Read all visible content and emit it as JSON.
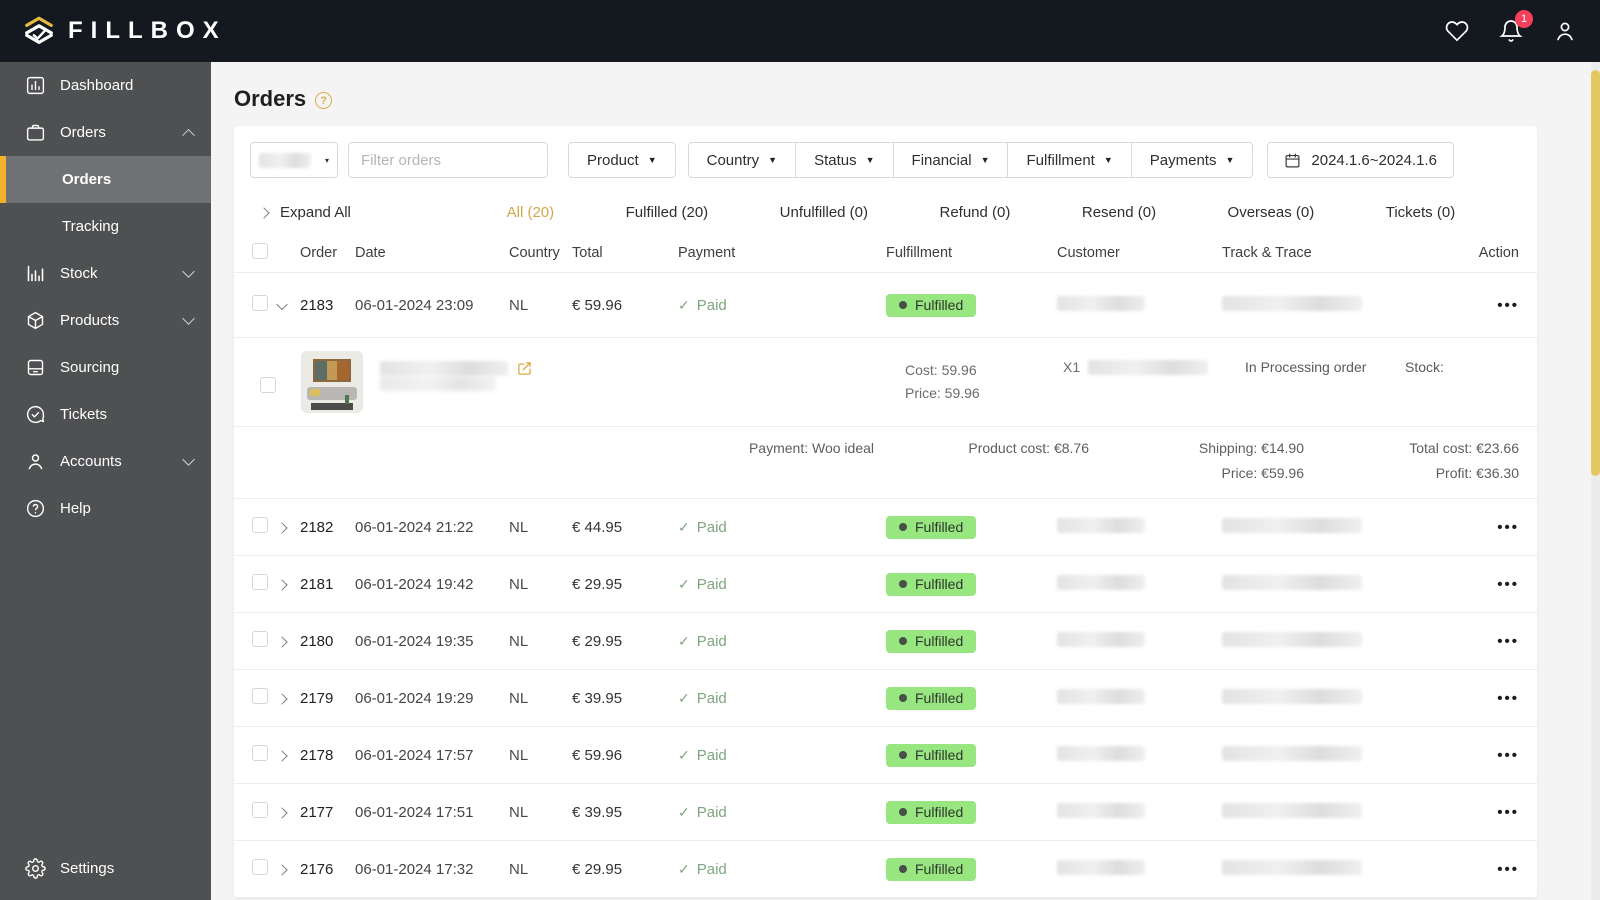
{
  "brand": {
    "name": "FILLBOX"
  },
  "topbar": {
    "notification_count": "1"
  },
  "icons": {
    "check": "✓",
    "more": "•••",
    "caret_down": "▼",
    "caret_small": "▾",
    "help": "?"
  },
  "colors": {
    "accent_gold": "#F1B32B",
    "tab_gold": "#D3A74B",
    "badge_green_bg": "#98E680",
    "paid_green": "#7EA67E",
    "notification_red": "#F4405C",
    "scrollbar_gold": "#E3C75F"
  },
  "sidebar": {
    "items": [
      {
        "label": "Dashboard"
      },
      {
        "label": "Orders"
      },
      {
        "label": "Orders"
      },
      {
        "label": "Tracking"
      },
      {
        "label": "Stock"
      },
      {
        "label": "Products"
      },
      {
        "label": "Sourcing"
      },
      {
        "label": "Tickets"
      },
      {
        "label": "Accounts"
      },
      {
        "label": "Help"
      }
    ],
    "settings_label": "Settings"
  },
  "page": {
    "title": "Orders"
  },
  "filters": {
    "search_placeholder": "Filter orders",
    "product": "Product",
    "country": "Country",
    "status": "Status",
    "financial": "Financial",
    "fulfillment": "Fulfillment",
    "payments": "Payments",
    "date_range": "2024.1.6~2024.1.6"
  },
  "tabs": {
    "expand_all": "Expand All",
    "items": [
      {
        "label": "All (20)",
        "active": true
      },
      {
        "label": "Fulfilled (20)"
      },
      {
        "label": "Unfulfilled (0)"
      },
      {
        "label": "Refund (0)"
      },
      {
        "label": "Resend (0)"
      },
      {
        "label": "Overseas (0)"
      },
      {
        "label": "Tickets (0)"
      }
    ]
  },
  "table": {
    "columns": [
      "Order",
      "Date",
      "Country",
      "Total",
      "Payment",
      "Fulfillment",
      "Customer",
      "Track & Trace",
      "Action"
    ],
    "rows": [
      {
        "order": "2183",
        "date": "06-01-2024 23:09",
        "country": "NL",
        "total": "€ 59.96",
        "payment": "Paid",
        "fulfillment": "Fulfilled",
        "expanded": true
      },
      {
        "order": "2182",
        "date": "06-01-2024 21:22",
        "country": "NL",
        "total": "€ 44.95",
        "payment": "Paid",
        "fulfillment": "Fulfilled"
      },
      {
        "order": "2181",
        "date": "06-01-2024 19:42",
        "country": "NL",
        "total": "€ 29.95",
        "payment": "Paid",
        "fulfillment": "Fulfilled"
      },
      {
        "order": "2180",
        "date": "06-01-2024 19:35",
        "country": "NL",
        "total": "€ 29.95",
        "payment": "Paid",
        "fulfillment": "Fulfilled"
      },
      {
        "order": "2179",
        "date": "06-01-2024 19:29",
        "country": "NL",
        "total": "€ 39.95",
        "payment": "Paid",
        "fulfillment": "Fulfilled"
      },
      {
        "order": "2178",
        "date": "06-01-2024 17:57",
        "country": "NL",
        "total": "€ 59.96",
        "payment": "Paid",
        "fulfillment": "Fulfilled"
      },
      {
        "order": "2177",
        "date": "06-01-2024 17:51",
        "country": "NL",
        "total": "€ 39.95",
        "payment": "Paid",
        "fulfillment": "Fulfilled"
      },
      {
        "order": "2176",
        "date": "06-01-2024 17:32",
        "country": "NL",
        "total": "€ 29.95",
        "payment": "Paid",
        "fulfillment": "Fulfilled"
      }
    ]
  },
  "detail": {
    "cost": "Cost: 59.96",
    "price": "Price: 59.96",
    "quantity": "X1",
    "processing_status": "In Processing order",
    "stock": "Stock:",
    "payment_method": "Payment: Woo ideal",
    "product_cost": "Product cost: €8.76",
    "shipping": "Shipping: €14.90",
    "price_line": "Price: €59.96",
    "total_cost": "Total cost: €23.66",
    "profit": "Profit: €36.30"
  }
}
